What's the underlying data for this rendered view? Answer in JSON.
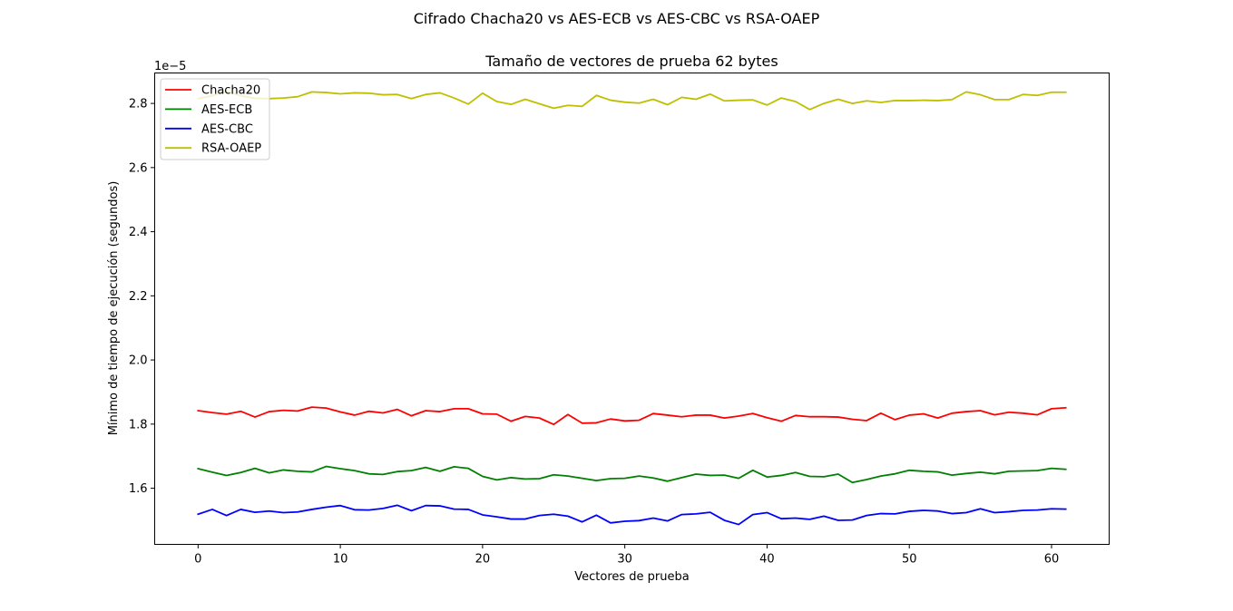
{
  "chart_data": {
    "type": "line",
    "suptitle": "Cifrado Chacha20 vs AES-ECB vs AES-CBC vs RSA-OAEP",
    "title": "Tamaño de vectores de prueba 62 bytes",
    "xlabel": "Vectores de prueba",
    "ylabel": "Mínimo de tiempo de ejecución (segundos)",
    "offset_label": "1e−5",
    "y_scale_factor": 1e-05,
    "xlim": [
      -3.05,
      64.05
    ],
    "ylim": [
      1.425,
      2.895
    ],
    "x_ticks": [
      0,
      10,
      20,
      30,
      40,
      50,
      60
    ],
    "x_tick_labels": [
      "0",
      "10",
      "20",
      "30",
      "40",
      "50",
      "60"
    ],
    "y_ticks": [
      1.6,
      1.8,
      2.0,
      2.2,
      2.4,
      2.6,
      2.8
    ],
    "y_tick_labels": [
      "1.6",
      "1.8",
      "2.0",
      "2.2",
      "2.4",
      "2.6",
      "2.8"
    ],
    "grid": false,
    "legend_position": "top-left",
    "x": [
      0,
      1,
      2,
      3,
      4,
      5,
      6,
      7,
      8,
      9,
      10,
      11,
      12,
      13,
      14,
      15,
      16,
      17,
      18,
      19,
      20,
      21,
      22,
      23,
      24,
      25,
      26,
      27,
      28,
      29,
      30,
      31,
      32,
      33,
      34,
      35,
      36,
      37,
      38,
      39,
      40,
      41,
      42,
      43,
      44,
      45,
      46,
      47,
      48,
      49,
      50,
      51,
      52,
      53,
      54,
      55,
      56,
      57,
      58,
      59,
      60,
      61
    ],
    "series": [
      {
        "name": "Chacha20",
        "color": "#ff0000",
        "values": [
          1.842,
          1.836,
          1.831,
          1.84,
          1.822,
          1.839,
          1.843,
          1.841,
          1.853,
          1.85,
          1.838,
          1.828,
          1.84,
          1.835,
          1.846,
          1.826,
          1.842,
          1.839,
          1.848,
          1.848,
          1.832,
          1.831,
          1.809,
          1.824,
          1.819,
          1.799,
          1.83,
          1.803,
          1.804,
          1.816,
          1.81,
          1.812,
          1.833,
          1.828,
          1.823,
          1.828,
          1.828,
          1.819,
          1.825,
          1.833,
          1.82,
          1.809,
          1.827,
          1.823,
          1.823,
          1.822,
          1.815,
          1.811,
          1.834,
          1.814,
          1.828,
          1.832,
          1.819,
          1.834,
          1.839,
          1.842,
          1.829,
          1.837,
          1.834,
          1.829,
          1.848,
          1.851
        ]
      },
      {
        "name": "AES-ECB",
        "color": "#008000",
        "values": [
          1.661,
          1.65,
          1.64,
          1.649,
          1.662,
          1.648,
          1.657,
          1.653,
          1.651,
          1.668,
          1.661,
          1.655,
          1.645,
          1.643,
          1.652,
          1.655,
          1.665,
          1.653,
          1.667,
          1.662,
          1.637,
          1.626,
          1.633,
          1.629,
          1.63,
          1.642,
          1.638,
          1.631,
          1.624,
          1.63,
          1.631,
          1.638,
          1.632,
          1.622,
          1.633,
          1.644,
          1.64,
          1.641,
          1.631,
          1.656,
          1.635,
          1.64,
          1.649,
          1.637,
          1.636,
          1.644,
          1.618,
          1.627,
          1.638,
          1.645,
          1.656,
          1.653,
          1.651,
          1.641,
          1.646,
          1.65,
          1.645,
          1.653,
          1.654,
          1.655,
          1.662,
          1.659
        ]
      },
      {
        "name": "AES-CBC",
        "color": "#0000ff",
        "values": [
          1.519,
          1.534,
          1.515,
          1.534,
          1.525,
          1.529,
          1.524,
          1.526,
          1.534,
          1.541,
          1.546,
          1.533,
          1.532,
          1.537,
          1.547,
          1.53,
          1.546,
          1.545,
          1.535,
          1.534,
          1.517,
          1.511,
          1.504,
          1.504,
          1.515,
          1.519,
          1.513,
          1.495,
          1.516,
          1.492,
          1.497,
          1.499,
          1.507,
          1.498,
          1.518,
          1.52,
          1.525,
          1.5,
          1.487,
          1.518,
          1.524,
          1.505,
          1.507,
          1.503,
          1.513,
          1.5,
          1.501,
          1.515,
          1.521,
          1.52,
          1.528,
          1.531,
          1.529,
          1.521,
          1.524,
          1.536,
          1.524,
          1.527,
          1.531,
          1.532,
          1.536,
          1.535
        ]
      },
      {
        "name": "RSA-OAEP",
        "color": "#bfbf00",
        "values": [
          2.815,
          2.824,
          2.838,
          2.824,
          2.816,
          2.815,
          2.817,
          2.821,
          2.836,
          2.834,
          2.83,
          2.833,
          2.832,
          2.827,
          2.828,
          2.815,
          2.828,
          2.833,
          2.817,
          2.798,
          2.832,
          2.806,
          2.797,
          2.813,
          2.799,
          2.785,
          2.794,
          2.791,
          2.825,
          2.81,
          2.804,
          2.801,
          2.813,
          2.796,
          2.819,
          2.813,
          2.829,
          2.808,
          2.81,
          2.811,
          2.795,
          2.817,
          2.806,
          2.781,
          2.8,
          2.813,
          2.8,
          2.808,
          2.803,
          2.809,
          2.809,
          2.81,
          2.809,
          2.812,
          2.836,
          2.827,
          2.812,
          2.812,
          2.828,
          2.825,
          2.835,
          2.835
        ]
      }
    ]
  }
}
